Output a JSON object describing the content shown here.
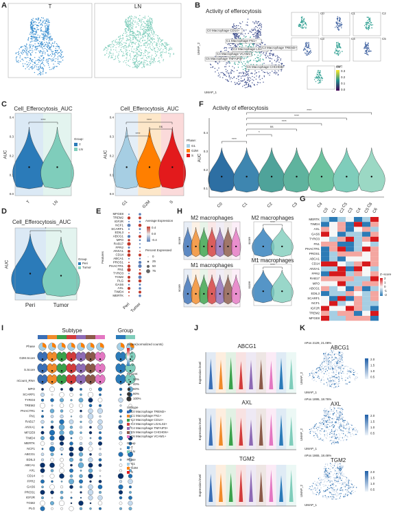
{
  "panel_letters": [
    "A",
    "B",
    "C",
    "D",
    "E",
    "F",
    "G",
    "H",
    "I",
    "J",
    "K"
  ],
  "A": {
    "labels": [
      "T",
      "LN"
    ]
  },
  "B": {
    "title": "Activity of efferocytosis",
    "clusters": [
      "C0 Macrophage CD14+",
      "C1 Macrophage FN1+",
      "C2 Macrophage LGALS2+",
      "C3 Macrophage TREM2+",
      "C4 Macrophage VCAM1+",
      "C5 Macrophage TNFAIP3+",
      "C6 Macrophage CHCHD6+"
    ],
    "mini": [
      "C0",
      "C1",
      "C2",
      "C3",
      "C4",
      "C5",
      "C6"
    ],
    "legend_title": "AUC",
    "legend_ticks": [
      "0.3",
      "0.2",
      "0.1",
      "0.0"
    ],
    "xlabel": "UMAP_1",
    "ylabel": "UMAP_2"
  },
  "C": {
    "left": {
      "title": "Cell_Efferocytosis_AUC",
      "ylabel": "AUC",
      "categories": [
        "T",
        "LN"
      ],
      "yticks": [
        "0.0",
        "0.1",
        "0.2",
        "0.3",
        "0.4"
      ],
      "sig": [
        "****"
      ],
      "legend_title": "Group:",
      "legend": [
        "T",
        "LN"
      ]
    },
    "right": {
      "title": "Cell_Efferocytosis_AUC",
      "ylabel": "AUC",
      "categories": [
        "G1",
        "G2M",
        "S"
      ],
      "yticks": [
        "0.0",
        "0.1",
        "0.2",
        "0.3",
        "0.4"
      ],
      "sig": [
        "****",
        "ns",
        "****"
      ],
      "legend_title": "Phase:",
      "legend": [
        "G1",
        "G2M",
        "S"
      ]
    }
  },
  "D": {
    "title": "Cell_Efferocytosis_AUC",
    "ylabel": "AUC",
    "categories": [
      "Peri",
      "Tumor"
    ],
    "sig": [
      "*"
    ],
    "legend_title": "Group",
    "legend": [
      "Peri",
      "Tumor"
    ]
  },
  "E": {
    "genes": [
      "MFGE8",
      "TREM2",
      "IGF2R",
      "NCF1",
      "SCARF1",
      "EDIL3",
      "ABCG1",
      "MPO",
      "RAB17",
      "FPR2",
      "ANXA1",
      "CD14",
      "ABCA1",
      "PROS1",
      "PHACTR1",
      "FN1",
      "TYRO3",
      "TGM2",
      "PLG",
      "GAS6",
      "AXL",
      "TIMD4",
      "MERTK"
    ],
    "categories": [
      "Peri",
      "Tumor"
    ],
    "ylabel": "Features",
    "avg_title": "Average Expression",
    "avg_ticks": [
      "0.4",
      "0.0",
      "-0.4"
    ],
    "pct_title": "Percent Expressed",
    "pct_ticks": [
      "0",
      "25",
      "50",
      "75"
    ]
  },
  "F": {
    "title": "Activity of efferocytosis",
    "ylabel": "AUC",
    "categories": [
      "C0",
      "C1",
      "C2",
      "C3",
      "C4",
      "C5",
      "C6"
    ],
    "yticks": [
      "0.1",
      "0.2",
      "0.3",
      "0.4"
    ],
    "sig": [
      "****",
      "*",
      "ns",
      "****",
      "****",
      "****"
    ]
  },
  "G": {
    "columns": [
      "C0",
      "C1",
      "C2",
      "C3",
      "C4",
      "C5",
      "C6"
    ],
    "rows": [
      "MERTK",
      "TIMD4",
      "AXL",
      "GAS6",
      "TYRO3",
      "FN1",
      "PHACTR1",
      "PROS1",
      "ABCA1",
      "CD14",
      "ANXA1",
      "FPR2",
      "RAB17",
      "MPO",
      "ABCG1",
      "EDIL3",
      "SCARF1",
      "NCF1",
      "IGF2R",
      "TREM2",
      "MFGE8"
    ],
    "legend_title": "Z−score",
    "legend_ticks": [
      "2",
      "1",
      "0",
      "-1",
      "-2"
    ]
  },
  "H": {
    "titles": [
      "M2 macrophages",
      "M1 macrophages",
      "M2 macrophages",
      "M1 macrophages"
    ],
    "ylabel": "score",
    "sig": "****"
  },
  "I": {
    "subtype_title": "Subtype",
    "group_title": "Group",
    "tracks": [
      "Phase",
      "G2M.Score",
      "S.Score",
      "nCount_RNA"
    ],
    "genes": [
      "MPO",
      "SCARF1",
      "TYRO3",
      "TREM2",
      "PHACTR1",
      "FN1",
      "RAB17",
      "ANXA1",
      "MFGE8",
      "TIMD4",
      "MERTK",
      "NCF1",
      "ABCG1",
      "EDIL3",
      "ABCA1",
      "AXL",
      "CD14",
      "FPR2",
      "GAS6",
      "PROS1",
      "IGF2R",
      "TGM2",
      "PLG"
    ],
    "z_title": "zscore(normalized counts)",
    "z_ticks": [
      "2",
      "1",
      "0",
      "-1",
      "-2"
    ],
    "pct_title": "Percent",
    "pct_ticks": [
      "20%",
      "40%",
      "60%",
      "80%",
      "100%"
    ],
    "subtypes": [
      "C0 Macrophage TREM2+",
      "C1 Macrophage FN1+",
      "C2 Macrophage CD14+",
      "C3 Macrophage LGALS2+",
      "C4 Macrophage TNFAIP3+",
      "C5 Macrophage CHCHD6+",
      "C6 Macrophage VCAM1+"
    ],
    "groups": [
      "T",
      "LN"
    ],
    "phase_title": "Phase",
    "phases": [
      "G1",
      "G2M",
      "S"
    ]
  },
  "J": {
    "genes": [
      "ABCG1",
      "AXL",
      "TGM2"
    ],
    "ylabel": "Expression level"
  },
  "K": {
    "genes": [
      "ABCG1",
      "AXL",
      "TGM2"
    ],
    "npos": [
      "nPos 2129, 21.08%",
      "nPos 1895, 18.76%",
      "nPos 1865, 18.46%"
    ],
    "ticks": [
      "2.0",
      "1.5",
      "1.0",
      "0.5"
    ],
    "xlabel": "UMAP_1",
    "ylabel": "UMAP_2"
  }
}
